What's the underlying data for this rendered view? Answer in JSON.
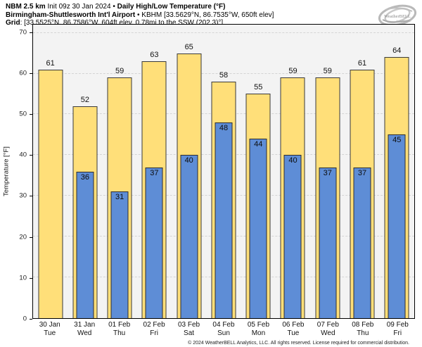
{
  "header": {
    "model_bold": "NBM 2.5 km",
    "init_text": " Init 09z 30 Jan 2024 • ",
    "product_bold": "Daily High/Low Temperature (°F)",
    "station_bold": "Birmingham-Shuttlesworth Int'l Airport",
    "station_sep": " • ",
    "station_text": "KBHM [33.5629°N, 86.7535°W, 650ft elev]",
    "grid_bold": "Grid",
    "grid_text": ": [33.5525°N, 86.7586°W, 604ft elev, 0.78mi to the SSW (202.3)°]"
  },
  "logo": {
    "text": "WeatherBELL",
    "subtext": "Analytics LLC"
  },
  "chart_data": {
    "type": "bar",
    "title": "Daily High/Low Temperature (°F)",
    "xlabel": "",
    "ylabel": "Temperature [°F]",
    "ylim": [
      0,
      72
    ],
    "yticks": [
      0,
      10,
      20,
      30,
      40,
      50,
      60,
      70
    ],
    "grid": true,
    "legend_position": "none",
    "categories": [
      {
        "date": "30 Jan",
        "day": "Tue"
      },
      {
        "date": "31 Jan",
        "day": "Wed"
      },
      {
        "date": "01 Feb",
        "day": "Thu"
      },
      {
        "date": "02 Feb",
        "day": "Fri"
      },
      {
        "date": "03 Feb",
        "day": "Sat"
      },
      {
        "date": "04 Feb",
        "day": "Sun"
      },
      {
        "date": "05 Feb",
        "day": "Mon"
      },
      {
        "date": "06 Feb",
        "day": "Tue"
      },
      {
        "date": "07 Feb",
        "day": "Wed"
      },
      {
        "date": "08 Feb",
        "day": "Thu"
      },
      {
        "date": "09 Feb",
        "day": "Fri"
      }
    ],
    "series": [
      {
        "name": "Daily High",
        "color": "#ffdf79",
        "values": [
          61,
          52,
          59,
          63,
          65,
          58,
          55,
          59,
          59,
          61,
          64
        ]
      },
      {
        "name": "Daily Low",
        "color": "#5e8dd6",
        "values": [
          null,
          36,
          31,
          37,
          40,
          48,
          44,
          40,
          37,
          37,
          45
        ]
      }
    ]
  },
  "footer": {
    "copyright": "© 2024 WeatherBELL Analytics, LLC. All rights reserved. License required for commercial distribution."
  }
}
